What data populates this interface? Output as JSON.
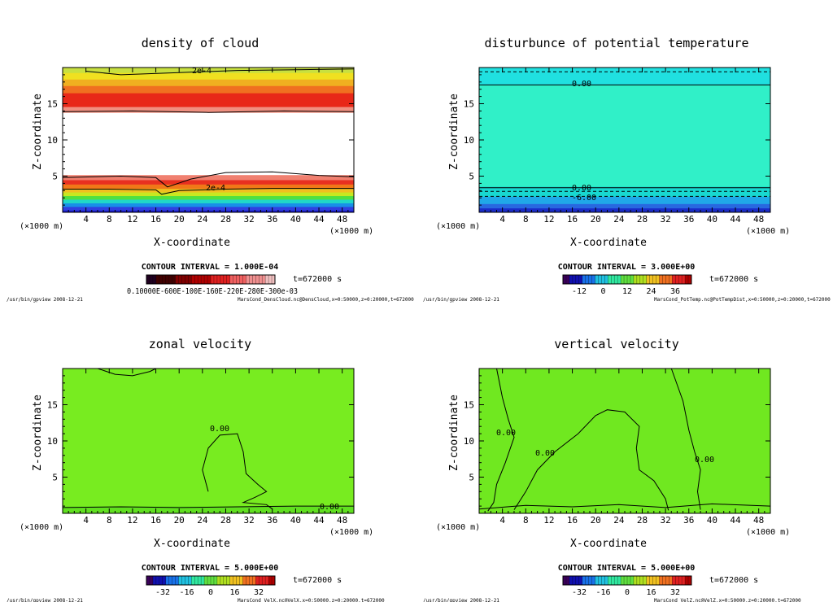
{
  "window": {
    "background": "#ffffff"
  },
  "chart_data": [
    {
      "type": "heatmap",
      "title": "density of cloud",
      "xlabel": "X-coordinate",
      "ylabel": "Z-coordinate",
      "x_unit": "(×1000 m)",
      "xlim": [
        0,
        50
      ],
      "ylim": [
        0,
        20
      ],
      "x_ticks": [
        "4",
        "8",
        "12",
        "16",
        "20",
        "24",
        "28",
        "32",
        "36",
        "40",
        "44",
        "48"
      ],
      "y_ticks": [
        "5",
        "10",
        "15"
      ],
      "contour_labels": [
        "2e-4",
        "2e-4"
      ],
      "contour_interval": "CONTOUR INTERVAL = 1.000E-04",
      "time": "t=672000 s",
      "colorbar_labels": [
        "0.10000E-03",
        "0.60000E-04",
        "0.10000E-03",
        "0.16000E-03",
        "0.22000E-03",
        "0.28000E-03",
        "0.30000e-03"
      ],
      "colorbar_text": "0.10000E-600E-100E-160E-220E-280E-300e-03",
      "footer_left": "/usr/bin/gpview  2008-12-21",
      "footer_right": "MarsCond_DensCloud.nc@DensCloud,x=0:50000,z=0:20000,t=672000",
      "bands": [
        {
          "z0": 0.0,
          "z1": 0.3,
          "color": "#1818c8"
        },
        {
          "z0": 0.3,
          "z1": 0.8,
          "color": "#3040e0"
        },
        {
          "z0": 0.8,
          "z1": 1.3,
          "color": "#1890e8"
        },
        {
          "z0": 1.3,
          "z1": 1.8,
          "color": "#20d8c8"
        },
        {
          "z0": 1.8,
          "z1": 2.3,
          "color": "#50e040"
        },
        {
          "z0": 2.3,
          "z1": 2.8,
          "color": "#c8e820"
        },
        {
          "z0": 2.8,
          "z1": 3.3,
          "color": "#f0c020"
        },
        {
          "z0": 3.3,
          "z1": 3.9,
          "color": "#f07818"
        },
        {
          "z0": 3.9,
          "z1": 4.5,
          "color": "#e83020"
        },
        {
          "z0": 4.5,
          "z1": 5.2,
          "color": "#f08070"
        },
        {
          "z0": 5.2,
          "z1": 13.8,
          "color": "#ffffff"
        },
        {
          "z0": 13.8,
          "z1": 14.6,
          "color": "#f09080"
        },
        {
          "z0": 14.6,
          "z1": 16.5,
          "color": "#e82818"
        },
        {
          "z0": 16.5,
          "z1": 17.5,
          "color": "#f07020"
        },
        {
          "z0": 17.5,
          "z1": 18.4,
          "color": "#f0b020"
        },
        {
          "z0": 18.4,
          "z1": 19.3,
          "color": "#f0e020"
        },
        {
          "z0": 19.3,
          "z1": 20.0,
          "color": "#c8e040"
        }
      ],
      "contours": [
        {
          "points": [
            [
              0,
              3.2
            ],
            [
              8,
              3.2
            ],
            [
              16,
              3.1
            ],
            [
              17,
              2.5
            ],
            [
              20,
              3.0
            ],
            [
              28,
              3.2
            ],
            [
              36,
              3.3
            ],
            [
              50,
              3.3
            ]
          ],
          "dashed": false
        },
        {
          "points": [
            [
              0,
              4.8
            ],
            [
              10,
              5.0
            ],
            [
              16,
              4.8
            ],
            [
              18,
              3.5
            ],
            [
              22,
              4.6
            ],
            [
              28,
              5.5
            ],
            [
              36,
              5.6
            ],
            [
              44,
              5.1
            ],
            [
              50,
              4.9
            ]
          ],
          "dashed": false
        },
        {
          "points": [
            [
              0,
              13.9
            ],
            [
              12,
              14.0
            ],
            [
              25,
              13.8
            ],
            [
              38,
              14.0
            ],
            [
              50,
              13.9
            ]
          ],
          "dashed": false
        },
        {
          "points": [
            [
              4,
              19.5
            ],
            [
              10,
              19.0
            ],
            [
              20,
              19.3
            ],
            [
              30,
              19.6
            ],
            [
              40,
              19.7
            ],
            [
              50,
              19.8
            ]
          ],
          "dashed": false
        }
      ],
      "colorbar_colors": [
        "#200020",
        "#400000",
        "#800000",
        "#b00000",
        "#e02020",
        "#f06060",
        "#f09090",
        "#f0c0c0"
      ]
    },
    {
      "type": "heatmap",
      "title": "disturbunce of potential temperature",
      "xlabel": "X-coordinate",
      "ylabel": "Z-coordinate",
      "x_unit": "(×1000 m)",
      "xlim": [
        0,
        50
      ],
      "ylim": [
        0,
        20
      ],
      "x_ticks": [
        "4",
        "8",
        "12",
        "16",
        "20",
        "24",
        "28",
        "32",
        "36",
        "40",
        "44",
        "48"
      ],
      "y_ticks": [
        "5",
        "10",
        "15"
      ],
      "contour_labels": [
        "0.00",
        "0.00",
        "-6.00"
      ],
      "contour_interval": "CONTOUR INTERVAL = 3.000E+00",
      "time": "t=672000 s",
      "colorbar_labels": [
        "-12",
        "0",
        "12",
        "24",
        "36"
      ],
      "footer_left": "/usr/bin/gpview  2008-12-21",
      "footer_right": "MarsCond_PotTemp.nc@PotTempDist,x=0:50000,z=0:20000,t=672000",
      "bands": [
        {
          "z0": 0.0,
          "z1": 0.6,
          "color": "#1a2cc8"
        },
        {
          "z0": 0.6,
          "z1": 1.2,
          "color": "#2868e0"
        },
        {
          "z0": 1.2,
          "z1": 2.2,
          "color": "#20a8e8"
        },
        {
          "z0": 2.2,
          "z1": 3.6,
          "color": "#18d8d0"
        },
        {
          "z0": 3.6,
          "z1": 17.6,
          "color": "#30f0c8"
        },
        {
          "z0": 17.6,
          "z1": 20.0,
          "color": "#20e0e0"
        }
      ],
      "contours": [
        {
          "points": [
            [
              0,
              17.6
            ],
            [
              50,
              17.6
            ]
          ],
          "dashed": false
        },
        {
          "points": [
            [
              0,
              3.4
            ],
            [
              50,
              3.4
            ]
          ],
          "dashed": false
        },
        {
          "points": [
            [
              0,
              2.9
            ],
            [
              50,
              2.9
            ]
          ],
          "dashed": true
        },
        {
          "points": [
            [
              0,
              2.2
            ],
            [
              50,
              2.2
            ]
          ],
          "dashed": true
        },
        {
          "points": [
            [
              0,
              19.4
            ],
            [
              50,
              19.4
            ]
          ],
          "dashed": true
        }
      ],
      "colorbar_colors": [
        "#3a005a",
        "#1010b0",
        "#1870e8",
        "#20c0e0",
        "#30e8a0",
        "#60e040",
        "#b0e020",
        "#f0c020",
        "#f07020",
        "#e02020",
        "#b00000"
      ]
    },
    {
      "type": "heatmap",
      "title": "zonal velocity",
      "xlabel": "X-coordinate",
      "ylabel": "Z-coordinate",
      "x_unit": "(×1000 m)",
      "xlim": [
        0,
        50
      ],
      "ylim": [
        0,
        20
      ],
      "x_ticks": [
        "4",
        "8",
        "12",
        "16",
        "20",
        "24",
        "28",
        "32",
        "36",
        "40",
        "44",
        "48"
      ],
      "y_ticks": [
        "5",
        "10",
        "15"
      ],
      "contour_labels": [
        "0.00",
        "0.00"
      ],
      "contour_interval": "CONTOUR INTERVAL = 5.000E+00",
      "time": "t=672000 s",
      "colorbar_labels": [
        "-32",
        "-16",
        "0",
        "16",
        "32"
      ],
      "footer_left": "/usr/bin/gpview  2008-12-21",
      "footer_right": "MarsCond_VelX.nc@VelX,x=0:50000,z=0:20000,t=672000",
      "bands": [
        {
          "z0": 0.0,
          "z1": 1.0,
          "color": "#60e020"
        },
        {
          "z0": 1.0,
          "z1": 20.0,
          "color": "#78ec20"
        }
      ],
      "contours": [
        {
          "points": [
            [
              6,
              20
            ],
            [
              9,
              19.2
            ],
            [
              12,
              19.0
            ],
            [
              15,
              19.6
            ],
            [
              16,
              20
            ]
          ],
          "dashed": false
        },
        {
          "points": [
            [
              25,
              3.0
            ],
            [
              24,
              6.0
            ],
            [
              25,
              9.0
            ],
            [
              27,
              10.8
            ],
            [
              30,
              11.0
            ],
            [
              31,
              8.5
            ],
            [
              31.5,
              5.5
            ],
            [
              33.5,
              4.0
            ],
            [
              35,
              3.0
            ],
            [
              33,
              2.2
            ],
            [
              31,
              1.5
            ],
            [
              35,
              1.2
            ],
            [
              36,
              0.6
            ]
          ],
          "dashed": false
        },
        {
          "points": [
            [
              0,
              0.8
            ],
            [
              10,
              0.9
            ],
            [
              20,
              0.8
            ],
            [
              30,
              0.9
            ],
            [
              40,
              1.0
            ],
            [
              50,
              1.0
            ]
          ],
          "dashed": false
        }
      ],
      "colorbar_colors": [
        "#3a005a",
        "#1010b0",
        "#1870e8",
        "#20c0e0",
        "#30e8a0",
        "#60e040",
        "#b0e020",
        "#f0c020",
        "#f07020",
        "#e02020",
        "#b00000"
      ]
    },
    {
      "type": "heatmap",
      "title": "vertical velocity",
      "xlabel": "X-coordinate",
      "ylabel": "Z-coordinate",
      "x_unit": "(×1000 m)",
      "xlim": [
        0,
        50
      ],
      "ylim": [
        0,
        20
      ],
      "x_ticks": [
        "4",
        "8",
        "12",
        "16",
        "20",
        "24",
        "28",
        "32",
        "36",
        "40",
        "44",
        "48"
      ],
      "y_ticks": [
        "5",
        "10",
        "15"
      ],
      "contour_labels": [
        "0.00",
        "0.00",
        "0.00"
      ],
      "contour_interval": "CONTOUR INTERVAL = 5.000E+00",
      "time": "t=672000 s",
      "colorbar_labels": [
        "-32",
        "-16",
        "0",
        "16",
        "32"
      ],
      "footer_left": "/usr/bin/gpview  2008-12-21",
      "footer_right": "MarsCond_VelZ.nc@VelZ,x=0:50000,z=0:20000,t=672000",
      "bands": [
        {
          "z0": 0.0,
          "z1": 20.0,
          "color": "#70e820"
        }
      ],
      "contours": [
        {
          "points": [
            [
              3,
              20
            ],
            [
              4,
              16
            ],
            [
              5,
              13
            ],
            [
              6,
              10.5
            ],
            [
              4.5,
              7
            ],
            [
              3,
              4
            ],
            [
              2.5,
              1.5
            ],
            [
              1.5,
              0.3
            ]
          ],
          "dashed": false
        },
        {
          "points": [
            [
              6,
              0.5
            ],
            [
              8,
              3.0
            ],
            [
              10,
              6.0
            ],
            [
              13,
              8.5
            ],
            [
              17,
              11.0
            ],
            [
              20,
              13.5
            ],
            [
              22,
              14.3
            ],
            [
              25,
              14.0
            ],
            [
              27.5,
              12.0
            ],
            [
              27,
              9.0
            ],
            [
              27.5,
              6.0
            ],
            [
              30,
              4.5
            ],
            [
              32,
              2.0
            ],
            [
              32.5,
              0.4
            ]
          ],
          "dashed": false
        },
        {
          "points": [
            [
              33,
              20
            ],
            [
              35,
              15.5
            ],
            [
              36,
              11.5
            ],
            [
              37,
              8.5
            ],
            [
              38,
              6.0
            ],
            [
              37.5,
              3.0
            ],
            [
              38,
              0.5
            ]
          ],
          "dashed": false
        },
        {
          "points": [
            [
              0,
              0.6
            ],
            [
              8,
              1.1
            ],
            [
              16,
              0.9
            ],
            [
              24,
              1.2
            ],
            [
              32,
              0.8
            ],
            [
              40,
              1.3
            ],
            [
              50,
              1.0
            ]
          ],
          "dashed": false
        }
      ],
      "colorbar_colors": [
        "#3a005a",
        "#1010b0",
        "#1870e8",
        "#20c0e0",
        "#30e8a0",
        "#60e040",
        "#b0e020",
        "#f0c020",
        "#f07020",
        "#e02020",
        "#b00000"
      ]
    }
  ]
}
